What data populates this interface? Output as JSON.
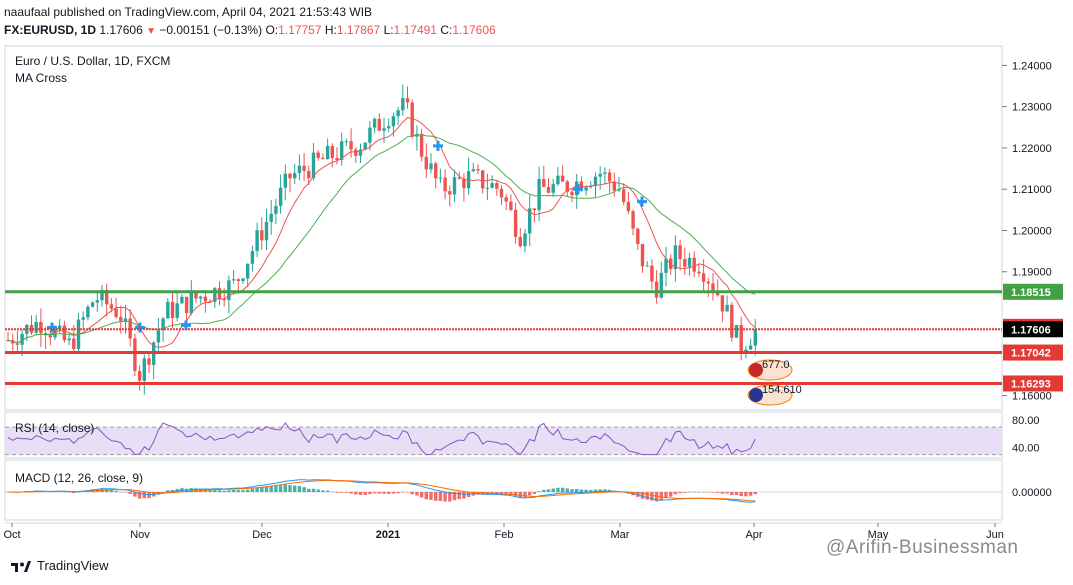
{
  "header": {
    "publisher": "naaufaal published on TradingView.com, April 04, 2021 21:53:43 WIB",
    "symbol": "FX:EURUSD, 1D",
    "last": "1.17606",
    "change": "−0.00151 (−0.13%)",
    "o_label": "O:",
    "o_value": "1.17757",
    "h_label": "H:",
    "h_value": "1.17867",
    "l_label": "L:",
    "l_value": "1.17491",
    "c_label": "C:",
    "c_value": "1.17606"
  },
  "legend": {
    "instrument": "Euro / U.S. Dollar, 1D, FXCM",
    "indicator": "MA Cross",
    "rsi": "RSI (14, close)",
    "macd": "MACD (12, 26, close, 9)"
  },
  "footer": {
    "brand": "TradingView"
  },
  "watermark": "@Arifin-Businessman",
  "colors": {
    "up": "#26a69a",
    "down": "#ef5350",
    "ma_fast": "#ef5350",
    "ma_slow": "#4caf50",
    "support_line": "#e53935",
    "resistance_line": "#43a047",
    "rsi_line": "#7e57c2",
    "rsi_band": "#e8dff7",
    "macd_line": "#2196f3",
    "signal_line": "#ff6d00"
  },
  "chart_data": [
    {
      "type": "candlestick",
      "title": "Euro / U.S. Dollar, 1D, FXCM",
      "ylim": [
        1.1565,
        1.2447
      ],
      "y_ticks": [
        "1.24000",
        "1.23000",
        "1.22000",
        "1.21000",
        "1.20000",
        "1.19000",
        "1.16000"
      ],
      "x_ticks": [
        "Oct",
        "Nov",
        "Dec",
        "2021",
        "Feb",
        "Mar",
        "Apr",
        "May",
        "Jun"
      ],
      "price_labels": [
        {
          "value": 1.18515,
          "text": "1.18515",
          "kind": "horizontal-green"
        },
        {
          "value": 1.17666,
          "text": "1.17666",
          "kind": "price-red"
        },
        {
          "value": 1.17606,
          "text": "1.17606",
          "kind": "last-price"
        },
        {
          "value": 1.17042,
          "text": "1.17042",
          "kind": "horizontal-red"
        },
        {
          "value": 1.16293,
          "text": "1.16293",
          "kind": "horizontal-red"
        }
      ],
      "horizontal_lines": [
        1.18515,
        1.17606,
        1.17042,
        1.16293
      ],
      "series_summary": [
        {
          "date": "Oct",
          "close": 1.172
        },
        {
          "date": "Nov",
          "close": 1.165
        },
        {
          "date": "Dec",
          "close": 1.206
        },
        {
          "date": "2021",
          "close": 1.232
        },
        {
          "date": "Feb",
          "close": 1.205
        },
        {
          "date": "Mar",
          "close": 1.193
        },
        {
          "date": "Apr",
          "close": 1.1761
        }
      ],
      "ma_crosses": [
        {
          "date": "Oct",
          "price": 1.1765
        },
        {
          "date": "Nov",
          "price": 1.1765
        },
        {
          "date": "Nov",
          "price": 1.177
        },
        {
          "date": "Jan",
          "price": 1.2205
        },
        {
          "date": "Feb",
          "price": 1.21
        },
        {
          "date": "Mar",
          "price": 1.207
        }
      ],
      "events": [
        "677.0",
        "154.610"
      ]
    },
    {
      "type": "line",
      "title": "RSI (14, close)",
      "y_ticks": [
        "80.00",
        "40.00"
      ],
      "ylim": [
        25,
        92
      ],
      "band": [
        30,
        70
      ]
    },
    {
      "type": "histogram+line",
      "title": "MACD (12, 26, close, 9)",
      "y_ticks": [
        "0.00000"
      ]
    }
  ]
}
